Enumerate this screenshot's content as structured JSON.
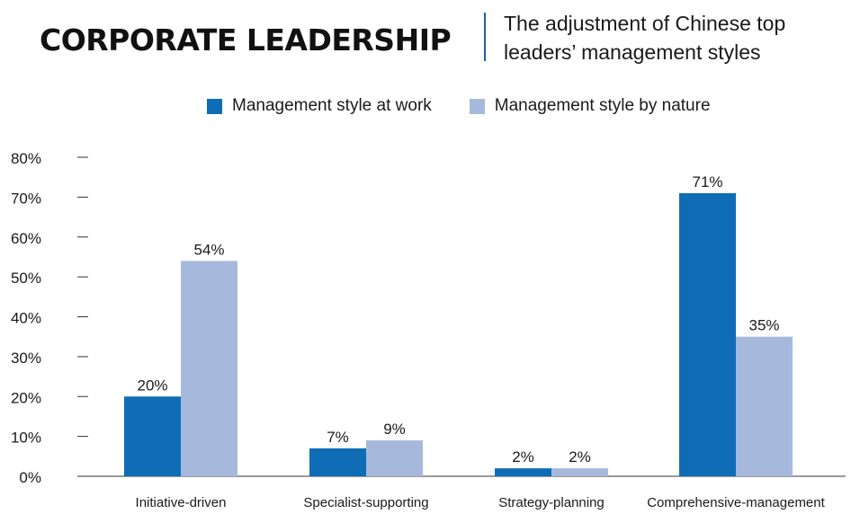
{
  "header": {
    "title": "CORPORATE LEADERSHIP",
    "subtitle_line1": "The adjustment of Chinese top",
    "subtitle_line2": "leaders’ management styles"
  },
  "colors": {
    "work": "#0f6db5",
    "nature": "#a6b9dd",
    "divider": "#1f5fa8"
  },
  "chart_data": {
    "type": "bar",
    "title": "",
    "xlabel": "",
    "ylabel": "",
    "ylim": [
      0,
      80
    ],
    "yticks": [
      "0%",
      "10%",
      "20%",
      "30%",
      "40%",
      "50%",
      "60%",
      "70%",
      "80%"
    ],
    "grid": false,
    "legend_position": "top",
    "categories": [
      "Initiative-driven",
      "Specialist-supporting",
      "Strategy-planning",
      "Comprehensive-management"
    ],
    "series": [
      {
        "name": "Management style at work",
        "color": "#0f6db5",
        "values": [
          20,
          7,
          2,
          71
        ],
        "labels": [
          "20%",
          "7%",
          "2%",
          "71%"
        ]
      },
      {
        "name": "Management style by nature",
        "color": "#a6b9dd",
        "values": [
          54,
          9,
          2,
          35
        ],
        "labels": [
          "54%",
          "9%",
          "2%",
          "35%"
        ]
      }
    ]
  }
}
